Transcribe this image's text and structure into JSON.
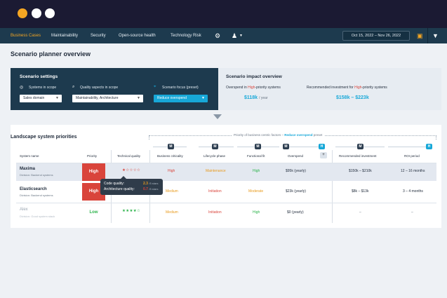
{
  "window": {
    "dots": [
      "#f5a623",
      "#ffffff",
      "#ffffff"
    ]
  },
  "nav": {
    "items": [
      {
        "label": "Business Cases",
        "active": true
      },
      {
        "label": "Maintainability"
      },
      {
        "label": "Security"
      },
      {
        "label": "Open-source health"
      },
      {
        "label": "Technology Risk"
      }
    ],
    "date_range": "Oct 15, 2022 – Nov 26, 2022"
  },
  "page": {
    "title": "Scenario planner overview"
  },
  "settings": {
    "title": "Scenario settings",
    "systems_label": "Systems in scope",
    "systems_value": "Sales domain",
    "quality_label": "Quality aspects in scope",
    "quality_value": "Maintainability, Architecture",
    "focus_label": "Scenario focus (preset)",
    "focus_value": "Reduce overspend"
  },
  "impact": {
    "title": "Scenario impact overview",
    "overspend_prefix": "Overspend in ",
    "overspend_hl": "High",
    "overspend_suffix": "-priority systems",
    "overspend_value": "$118k",
    "overspend_unit": "/ year",
    "invest_prefix": "Recommended investment for ",
    "invest_hl": "High",
    "invest_suffix": "-priority systems",
    "invest_value": "$158k – $223k"
  },
  "landscape": {
    "title": "Landscape system priorities",
    "priority_note_prefix": "Priority of business centric factors – ",
    "priority_note_hl": "Reduce overspend",
    "priority_note_suffix": " preset",
    "badges": [
      "M",
      "M",
      "M",
      "M",
      "H",
      "M",
      "H"
    ],
    "plus": "+",
    "headers": [
      "System name",
      "Priority",
      "Technical quality",
      "Business criticality",
      "Lifecycle phase",
      "Functional fit",
      "Overspend",
      "Recommended investment",
      "ROI period"
    ],
    "rows": [
      {
        "name": "Maxima",
        "division": "Division: Backend systems",
        "priority": "High",
        "stars": "★☆☆☆☆",
        "criticality": "High",
        "lifecycle": "Maintenance",
        "fit": "High",
        "overspend": "$95k (yearly)",
        "investment": "$150k – $210k",
        "roi": "12 – 16 months"
      },
      {
        "name": "Elasticsearch",
        "division": "Division: Backend systems",
        "priority": "High",
        "stars": "★★☆☆☆",
        "criticality": "Medium",
        "lifecycle": "Initiation",
        "fit": "Moderate",
        "overspend": "$23k (yearly)",
        "investment": "$8k – $13k",
        "roi": "3 – 4 months"
      },
      {
        "name": "Alex",
        "division": "Division: Good system stack",
        "priority": "Low",
        "stars": "★★★★☆",
        "criticality": "Medium",
        "lifecycle": "Initiation",
        "fit": "High",
        "overspend": "$0 (yearly)",
        "investment": "–",
        "roi": "–"
      }
    ],
    "tooltip": {
      "code_label": "Code quality:",
      "code_value": "2.3",
      "code_scale": "/5 stars",
      "arch_label": "Architecture quality:",
      "arch_value": "0.7",
      "arch_scale": "/5 stars"
    }
  },
  "colors": {
    "accent": "#17a8d8",
    "high": "#d9443b",
    "medium": "#e89a1c",
    "low": "#2bb34a",
    "nav_bg": "#1d3a4e",
    "titlebar": "#1b1a33"
  }
}
